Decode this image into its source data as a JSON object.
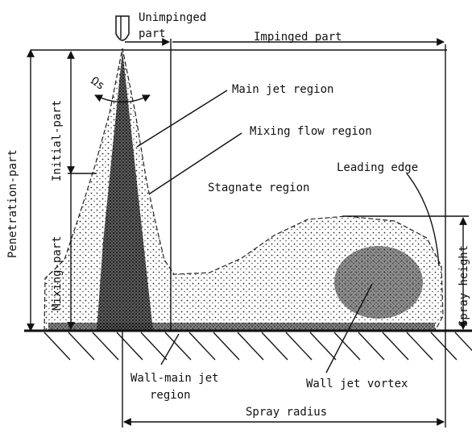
{
  "labels": {
    "unimpinged_part": [
      "Unimpinged",
      "part"
    ],
    "impinged_part": "Impinged part",
    "spray_angle": "Ωs",
    "main_jet_region": "Main jet region",
    "mixing_flow_region": "Mixing flow region",
    "leading_edge": "Leading edge",
    "stagnate_region": "Stagnate region",
    "penetration_part": "Penetration-part",
    "mixing_part": "Mixing-part",
    "initial_part": "Initial-part",
    "spray_height": "Spray height",
    "wall_main_jet_region": [
      "Wall-main jet",
      "region"
    ],
    "wall_jet_vortex": "Wall jet vortex",
    "spray_radius": "Spray radius"
  }
}
